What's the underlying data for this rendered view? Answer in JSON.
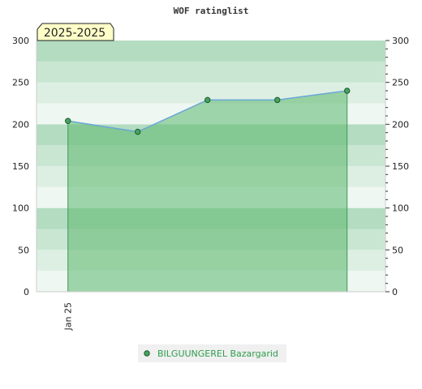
{
  "chart_data": {
    "type": "area",
    "title": "WOF ratinglist",
    "period_label": "2025-2025",
    "xlabel": "",
    "ylabel": "",
    "x_tick_labels": [
      {
        "label": "Jan 25",
        "at": 0
      }
    ],
    "x_range": [
      -0.45,
      4.55
    ],
    "ylim": [
      0,
      300
    ],
    "y_ticks": [
      0,
      50,
      100,
      150,
      200,
      250,
      300
    ],
    "y_axis_left": true,
    "y_axis_right": true,
    "grid": false,
    "legend_position": "bottom-center",
    "series": [
      {
        "name": "BILGUUNGEREL Bazargarid",
        "x": [
          0,
          1,
          2,
          3,
          4
        ],
        "values": [
          204,
          191,
          229,
          229,
          240
        ]
      }
    ],
    "colors": {
      "fill": "#5cb86e",
      "fill_opacity": "0.55",
      "line": "#6aa7d9",
      "marker": "#46a35e",
      "band_dark": "#b3dcc0",
      "band_mid": "#c9e6d2",
      "band_light": "#ddefe3",
      "band_lightest": "#eef7f1",
      "legend_bg": "#f0f0f0",
      "period_bg": "#ffffc8"
    }
  }
}
